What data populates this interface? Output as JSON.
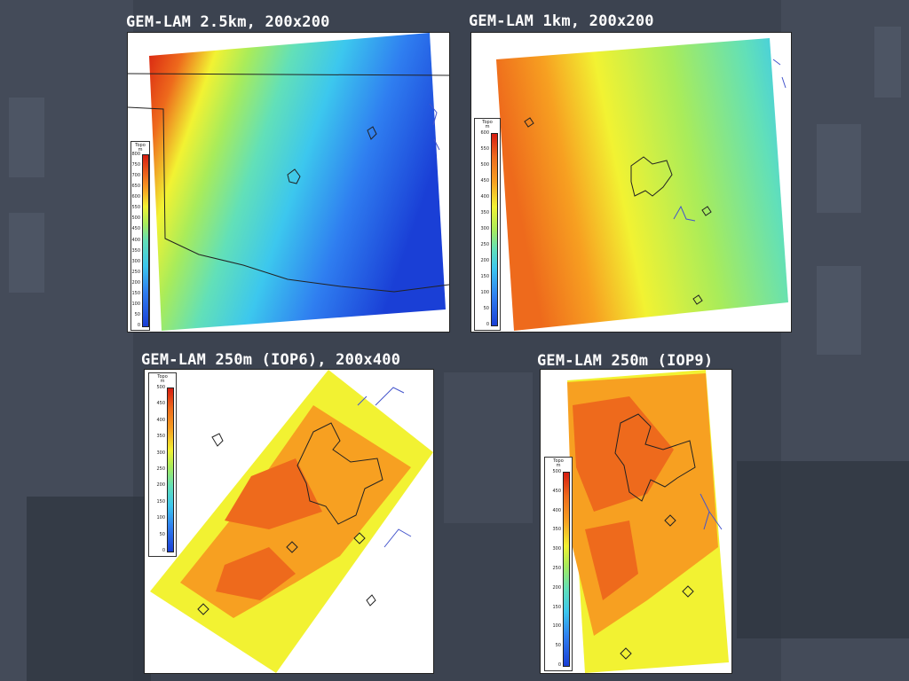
{
  "panels": [
    {
      "title": "GEM-LAM 2.5km, 200x200",
      "legend_title": "Topo",
      "legend_unit": "m",
      "ticks": [
        "0",
        "50",
        "100",
        "150",
        "200",
        "250",
        "300",
        "350",
        "400",
        "450",
        "500",
        "550",
        "600",
        "650",
        "700",
        "750",
        "800"
      ]
    },
    {
      "title": "GEM-LAM 1km, 200x200",
      "legend_title": "Topo",
      "legend_unit": "m",
      "ticks": [
        "0",
        "50",
        "100",
        "150",
        "200",
        "250",
        "300",
        "350",
        "400",
        "450",
        "500",
        "550",
        "600"
      ]
    },
    {
      "title": "GEM-LAM 250m (IOP6), 200x400",
      "legend_title": "Topo",
      "legend_unit": "m",
      "ticks": [
        "0",
        "50",
        "100",
        "150",
        "200",
        "250",
        "300",
        "350",
        "400",
        "450",
        "500"
      ]
    },
    {
      "title": "GEM-LAM 250m (IOP9)",
      "legend_title": "Topo",
      "legend_unit": "m",
      "ticks": [
        "0",
        "50",
        "100",
        "150",
        "200",
        "250",
        "300",
        "350",
        "400",
        "450",
        "500"
      ]
    }
  ],
  "colors": {
    "deep_blue": "#1a3fd6",
    "blue": "#2f7ef0",
    "cyan": "#3cc7ee",
    "teal": "#62e0b8",
    "green": "#a9ec5a",
    "yellow": "#f2f232",
    "orange": "#f7a021",
    "red_orange": "#ee6a1c",
    "red": "#d61c10"
  }
}
